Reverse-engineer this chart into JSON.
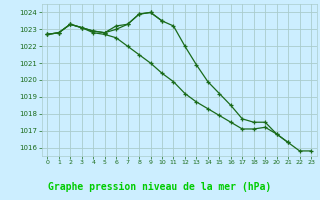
{
  "x": [
    0,
    1,
    2,
    3,
    4,
    5,
    6,
    7,
    8,
    9,
    10,
    11,
    12,
    13,
    14,
    15,
    16,
    17,
    18,
    19,
    20,
    21,
    22,
    23
  ],
  "series1": [
    1022.7,
    1022.8,
    1023.3,
    1023.1,
    1022.9,
    1022.8,
    1023.2,
    1023.3,
    1023.9,
    1024.0,
    1023.5,
    1023.2,
    1022.0,
    1020.9,
    1019.9,
    1019.2,
    1018.5,
    1017.7,
    1017.5,
    1017.5,
    1016.8,
    1016.3,
    null,
    null
  ],
  "series2": [
    1022.7,
    1022.8,
    1023.3,
    1023.1,
    1022.9,
    1022.8,
    1023.0,
    1023.3,
    1023.9,
    1024.0,
    1023.5,
    null,
    null,
    null,
    null,
    null,
    null,
    null,
    null,
    null,
    null,
    null,
    null,
    null
  ],
  "series3": [
    1022.7,
    1022.8,
    1023.3,
    1023.1,
    1022.8,
    1022.7,
    1022.5,
    1022.0,
    1021.5,
    1021.0,
    1020.4,
    1019.9,
    1019.2,
    1018.7,
    1018.3,
    1017.9,
    1017.5,
    1017.1,
    1017.1,
    1017.2,
    1016.8,
    1016.3,
    1015.8,
    1015.8
  ],
  "background_color": "#cceeff",
  "grid_color": "#aacccc",
  "line_color": "#1a6b1a",
  "label_bg": "#006600",
  "label_fg": "#00cc00",
  "xlabel": "Graphe pression niveau de la mer (hPa)",
  "ylim": [
    1015.5,
    1024.5
  ],
  "xlim": [
    -0.5,
    23.5
  ],
  "yticks": [
    1016,
    1017,
    1018,
    1019,
    1020,
    1021,
    1022,
    1023,
    1024
  ],
  "xticks": [
    0,
    1,
    2,
    3,
    4,
    5,
    6,
    7,
    8,
    9,
    10,
    11,
    12,
    13,
    14,
    15,
    16,
    17,
    18,
    19,
    20,
    21,
    22,
    23
  ]
}
